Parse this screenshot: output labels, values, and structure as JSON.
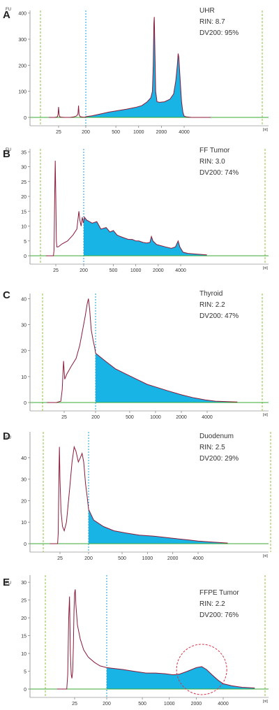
{
  "chart_data": [
    {
      "type": "area",
      "panel": "A",
      "fu_label": "FU",
      "x_unit_label": "[nt]",
      "x_ticks": [
        "25",
        "200",
        "500",
        "1000",
        "2000",
        "4000"
      ],
      "x_tick_values": [
        25,
        200,
        500,
        1000,
        2000,
        4000
      ],
      "y_ticks": [
        "0",
        "100",
        "200",
        "300",
        "400"
      ],
      "ylim": [
        0,
        410
      ],
      "sample": "UHR",
      "rin": "RIN: 8.7",
      "dv200": "DV200: 95%",
      "trace": [
        [
          12,
          0
        ],
        [
          18,
          0
        ],
        [
          21,
          1
        ],
        [
          23,
          3
        ],
        [
          24,
          12
        ],
        [
          25,
          40
        ],
        [
          26,
          12
        ],
        [
          27,
          3
        ],
        [
          30,
          1
        ],
        [
          40,
          0
        ],
        [
          60,
          0
        ],
        [
          80,
          2
        ],
        [
          100,
          6
        ],
        [
          110,
          14
        ],
        [
          115,
          45
        ],
        [
          120,
          10
        ],
        [
          130,
          3
        ],
        [
          160,
          1
        ],
        [
          199,
          1
        ],
        [
          200,
          3
        ],
        [
          240,
          6
        ],
        [
          300,
          12
        ],
        [
          400,
          20
        ],
        [
          500,
          25
        ],
        [
          700,
          32
        ],
        [
          900,
          38
        ],
        [
          1100,
          45
        ],
        [
          1300,
          60
        ],
        [
          1450,
          75
        ],
        [
          1520,
          100
        ],
        [
          1560,
          200
        ],
        [
          1590,
          360
        ],
        [
          1610,
          385
        ],
        [
          1640,
          270
        ],
        [
          1680,
          100
        ],
        [
          1750,
          60
        ],
        [
          1900,
          58
        ],
        [
          2200,
          60
        ],
        [
          2600,
          70
        ],
        [
          2900,
          90
        ],
        [
          3100,
          140
        ],
        [
          3250,
          200
        ],
        [
          3330,
          245
        ],
        [
          3400,
          230
        ],
        [
          3550,
          140
        ],
        [
          3700,
          60
        ],
        [
          3850,
          20
        ],
        [
          4000,
          5
        ],
        [
          4300,
          2
        ],
        [
          5000,
          0
        ],
        [
          9000,
          0
        ]
      ]
    },
    {
      "type": "area",
      "panel": "B",
      "fu_label": "FU",
      "x_unit_label": "[nt]",
      "x_ticks": [
        "25",
        "200",
        "500",
        "1000",
        "2000",
        "4000"
      ],
      "x_tick_values": [
        25,
        200,
        500,
        1000,
        2000,
        4000
      ],
      "y_ticks": [
        "0",
        "5",
        "10",
        "15",
        "20",
        "25",
        "30",
        "35"
      ],
      "ylim": [
        0,
        36
      ],
      "sample": "FF Tumor",
      "rin": "RIN: 3.0",
      "dv200": "DV200: 74%",
      "trace": [
        [
          12,
          0
        ],
        [
          21,
          0
        ],
        [
          22,
          2
        ],
        [
          23,
          20
        ],
        [
          24,
          32
        ],
        [
          25,
          20
        ],
        [
          26,
          5
        ],
        [
          27,
          3
        ],
        [
          30,
          3
        ],
        [
          40,
          4
        ],
        [
          60,
          5
        ],
        [
          90,
          7
        ],
        [
          120,
          9
        ],
        [
          140,
          15
        ],
        [
          150,
          12
        ],
        [
          165,
          10
        ],
        [
          180,
          13
        ],
        [
          195,
          11
        ],
        [
          205,
          13
        ],
        [
          220,
          12
        ],
        [
          260,
          11
        ],
        [
          300,
          11.5
        ],
        [
          340,
          9
        ],
        [
          400,
          9.5
        ],
        [
          450,
          8
        ],
        [
          500,
          8.5
        ],
        [
          560,
          7
        ],
        [
          620,
          6.5
        ],
        [
          700,
          6
        ],
        [
          800,
          5.5
        ],
        [
          900,
          5.5
        ],
        [
          1000,
          5
        ],
        [
          1100,
          5
        ],
        [
          1250,
          4.5
        ],
        [
          1400,
          4.3
        ],
        [
          1550,
          4.5
        ],
        [
          1620,
          6.5
        ],
        [
          1700,
          5
        ],
        [
          1900,
          3.8
        ],
        [
          2500,
          3
        ],
        [
          3000,
          2.5
        ],
        [
          3400,
          3
        ],
        [
          3700,
          5
        ],
        [
          3900,
          3
        ],
        [
          4300,
          1.2
        ],
        [
          5000,
          0.8
        ],
        [
          7000,
          0.5
        ],
        [
          9000,
          0.3
        ]
      ]
    },
    {
      "type": "area",
      "panel": "C",
      "fu_label": "",
      "x_unit_label": "[nt]",
      "x_ticks": [
        "25",
        "200",
        "500",
        "1000",
        "2000",
        "4000"
      ],
      "x_tick_values": [
        25,
        200,
        500,
        1000,
        2000,
        4000
      ],
      "y_ticks": [
        "0",
        "10",
        "20",
        "30",
        "40"
      ],
      "ylim": [
        0,
        42
      ],
      "sample": "Thyroid",
      "rin": "RIN: 2.2",
      "dv200": "DV200: 47%",
      "trace": [
        [
          8,
          0
        ],
        [
          15,
          0
        ],
        [
          20,
          0.5
        ],
        [
          22,
          5
        ],
        [
          24,
          16
        ],
        [
          26,
          9
        ],
        [
          30,
          11
        ],
        [
          40,
          14
        ],
        [
          55,
          17
        ],
        [
          70,
          22
        ],
        [
          85,
          28
        ],
        [
          100,
          33
        ],
        [
          115,
          38
        ],
        [
          125,
          40
        ],
        [
          135,
          36
        ],
        [
          150,
          28
        ],
        [
          170,
          24
        ],
        [
          190,
          21
        ],
        [
          200,
          19
        ],
        [
          260,
          16
        ],
        [
          340,
          13
        ],
        [
          450,
          11
        ],
        [
          600,
          9
        ],
        [
          800,
          7
        ],
        [
          1000,
          6
        ],
        [
          1400,
          4.5
        ],
        [
          2000,
          3
        ],
        [
          2800,
          1.8
        ],
        [
          3800,
          1
        ],
        [
          5000,
          0.5
        ],
        [
          9000,
          0.2
        ]
      ]
    },
    {
      "type": "area",
      "panel": "D",
      "fu_label": "FU",
      "x_unit_label": "[nt]",
      "x_ticks": [
        "25",
        "200",
        "500",
        "1000",
        "2000",
        "4000"
      ],
      "x_tick_values": [
        25,
        200,
        500,
        1000,
        2000,
        4000
      ],
      "y_ticks": [
        "0",
        "10",
        "20",
        "30",
        "40"
      ],
      "ylim": [
        0,
        52
      ],
      "sample": "Duodenum",
      "rin": "RIN: 2.5",
      "dv200": "DV200: 29%",
      "trace": [
        [
          12,
          0
        ],
        [
          21,
          0
        ],
        [
          22,
          5
        ],
        [
          23,
          30
        ],
        [
          24,
          45
        ],
        [
          25,
          30
        ],
        [
          27,
          15
        ],
        [
          30,
          8
        ],
        [
          34,
          6
        ],
        [
          40,
          10
        ],
        [
          50,
          25
        ],
        [
          60,
          38
        ],
        [
          70,
          45
        ],
        [
          80,
          43
        ],
        [
          95,
          38
        ],
        [
          110,
          40
        ],
        [
          125,
          42
        ],
        [
          140,
          38
        ],
        [
          160,
          28
        ],
        [
          180,
          22
        ],
        [
          200,
          16
        ],
        [
          230,
          11
        ],
        [
          300,
          8
        ],
        [
          400,
          6
        ],
        [
          550,
          5
        ],
        [
          800,
          4
        ],
        [
          1200,
          3.5
        ],
        [
          2000,
          2.5
        ],
        [
          3000,
          1.8
        ],
        [
          4000,
          1.2
        ],
        [
          6000,
          0.7
        ],
        [
          9000,
          0.3
        ]
      ]
    },
    {
      "type": "area",
      "panel": "E",
      "fu_label": "FU",
      "x_unit_label": "[nt]",
      "x_ticks": [
        "25",
        "200",
        "500",
        "1000",
        "2000",
        "4000"
      ],
      "x_tick_values": [
        25,
        200,
        500,
        1000,
        2000,
        4000
      ],
      "y_ticks": [
        "0",
        "5",
        "10",
        "15",
        "20",
        "25",
        "30"
      ],
      "ylim": [
        0,
        32
      ],
      "sample": "FFPE Tumor",
      "rin": "RIN: 2.2",
      "dv200": "DV200: 76%",
      "trace": [
        [
          8,
          0
        ],
        [
          15,
          0
        ],
        [
          16,
          4
        ],
        [
          17,
          20
        ],
        [
          18,
          26
        ],
        [
          19,
          10
        ],
        [
          20,
          4
        ],
        [
          21,
          3
        ],
        [
          22,
          5
        ],
        [
          23,
          12
        ],
        [
          24,
          22
        ],
        [
          25,
          27
        ],
        [
          26,
          28
        ],
        [
          27,
          24
        ],
        [
          30,
          18
        ],
        [
          36,
          14
        ],
        [
          45,
          11
        ],
        [
          60,
          9
        ],
        [
          90,
          7.5
        ],
        [
          130,
          6.5
        ],
        [
          200,
          6
        ],
        [
          300,
          5.5
        ],
        [
          400,
          5
        ],
        [
          550,
          4.5
        ],
        [
          700,
          4.5
        ],
        [
          900,
          4.3
        ],
        [
          1100,
          4
        ],
        [
          1300,
          4.2
        ],
        [
          1600,
          5
        ],
        [
          2000,
          6
        ],
        [
          2300,
          6.3
        ],
        [
          2600,
          5.5
        ],
        [
          3000,
          4
        ],
        [
          3500,
          2.5
        ],
        [
          4000,
          1.5
        ],
        [
          5000,
          0.9
        ],
        [
          6500,
          0.5
        ],
        [
          9000,
          0.3
        ]
      ]
    }
  ]
}
